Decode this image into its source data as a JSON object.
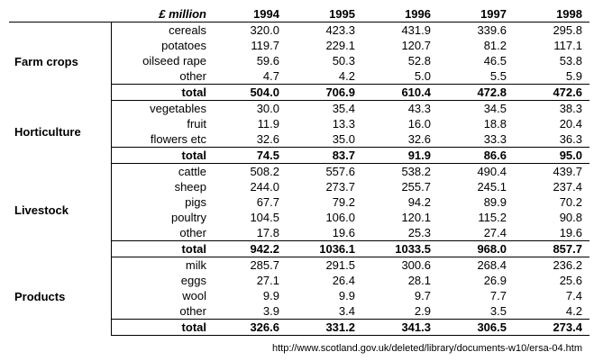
{
  "header": {
    "unit": "£ million",
    "years": [
      "1994",
      "1995",
      "1996",
      "1997",
      "1998"
    ]
  },
  "groups": [
    {
      "name": "Farm crops",
      "rows": [
        {
          "item": "cereals",
          "values": [
            "320.0",
            "423.3",
            "431.9",
            "339.6",
            "295.8"
          ]
        },
        {
          "item": "potatoes",
          "values": [
            "119.7",
            "229.1",
            "120.7",
            "81.2",
            "117.1"
          ]
        },
        {
          "item": "oilseed rape",
          "values": [
            "59.6",
            "50.3",
            "52.8",
            "46.5",
            "53.8"
          ]
        },
        {
          "item": "other",
          "values": [
            "4.7",
            "4.2",
            "5.0",
            "5.5",
            "5.9"
          ]
        }
      ],
      "total": {
        "item": "total",
        "values": [
          "504.0",
          "706.9",
          "610.4",
          "472.8",
          "472.6"
        ]
      }
    },
    {
      "name": "Horticulture",
      "rows": [
        {
          "item": "vegetables",
          "values": [
            "30.0",
            "35.4",
            "43.3",
            "34.5",
            "38.3"
          ]
        },
        {
          "item": "fruit",
          "values": [
            "11.9",
            "13.3",
            "16.0",
            "18.8",
            "20.4"
          ]
        },
        {
          "item": "flowers etc",
          "values": [
            "32.6",
            "35.0",
            "32.6",
            "33.3",
            "36.3"
          ]
        }
      ],
      "total": {
        "item": "total",
        "values": [
          "74.5",
          "83.7",
          "91.9",
          "86.6",
          "95.0"
        ]
      }
    },
    {
      "name": "Livestock",
      "rows": [
        {
          "item": "cattle",
          "values": [
            "508.2",
            "557.6",
            "538.2",
            "490.4",
            "439.7"
          ]
        },
        {
          "item": "sheep",
          "values": [
            "244.0",
            "273.7",
            "255.7",
            "245.1",
            "237.4"
          ]
        },
        {
          "item": "pigs",
          "values": [
            "67.7",
            "79.2",
            "94.2",
            "89.9",
            "70.2"
          ]
        },
        {
          "item": "poultry",
          "values": [
            "104.5",
            "106.0",
            "120.1",
            "115.2",
            "90.8"
          ]
        },
        {
          "item": "other",
          "values": [
            "17.8",
            "19.6",
            "25.3",
            "27.4",
            "19.6"
          ]
        }
      ],
      "total": {
        "item": "total",
        "values": [
          "942.2",
          "1036.1",
          "1033.5",
          "968.0",
          "857.7"
        ]
      }
    },
    {
      "name": "Products",
      "rows": [
        {
          "item": "milk",
          "values": [
            "285.7",
            "291.5",
            "300.6",
            "268.4",
            "236.2"
          ]
        },
        {
          "item": "eggs",
          "values": [
            "27.1",
            "26.4",
            "28.1",
            "26.9",
            "25.6"
          ]
        },
        {
          "item": "wool",
          "values": [
            "9.9",
            "9.9",
            "9.7",
            "7.7",
            "7.4"
          ]
        },
        {
          "item": "other",
          "values": [
            "3.9",
            "3.4",
            "2.9",
            "3.5",
            "4.2"
          ]
        }
      ],
      "total": {
        "item": "total",
        "values": [
          "326.6",
          "331.2",
          "341.3",
          "306.5",
          "273.4"
        ]
      }
    }
  ],
  "source": "http://www.scotland.gov.uk/deleted/library/documents-w10/ersa-04.htm"
}
